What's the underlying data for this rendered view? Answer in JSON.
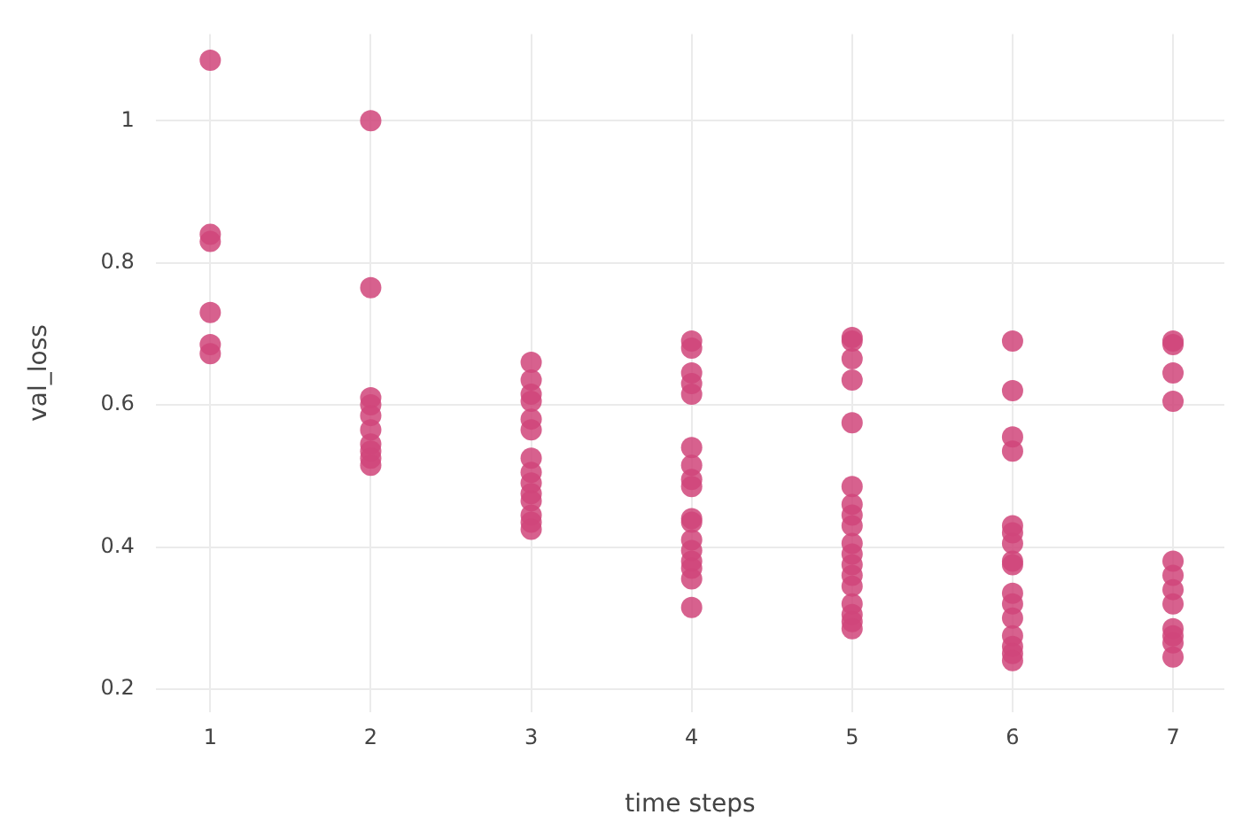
{
  "chart_data": {
    "type": "scatter",
    "xlabel": "time steps",
    "ylabel": "val_loss",
    "xlim": [
      0.66,
      7.32
    ],
    "xticks": [
      1,
      2,
      3,
      4,
      5,
      6,
      7
    ],
    "ylim": [
      0.168,
      1.122
    ],
    "yticks": [
      0.2,
      0.4,
      0.6,
      0.8,
      1
    ],
    "grid": true,
    "marker": "circle",
    "series": [
      {
        "color": "#d0457a",
        "x": [
          1,
          1,
          1,
          1,
          1,
          1,
          2,
          2,
          2,
          2,
          2,
          2,
          2,
          2,
          2,
          2,
          3,
          3,
          3,
          3,
          3,
          3,
          3,
          3,
          3,
          3,
          3,
          3,
          3,
          3,
          4,
          4,
          4,
          4,
          4,
          4,
          4,
          4,
          4,
          4,
          4,
          4,
          4,
          4,
          4,
          4,
          4,
          5,
          5,
          5,
          5,
          5,
          5,
          5,
          5,
          5,
          5,
          5,
          5,
          5,
          5,
          5,
          5,
          5,
          5,
          6,
          6,
          6,
          6,
          6,
          6,
          6,
          6,
          6,
          6,
          6,
          6,
          6,
          6,
          6,
          6,
          7,
          7,
          7,
          7,
          7,
          7,
          7,
          7,
          7,
          7,
          7,
          7
        ],
        "values": [
          1.085,
          0.84,
          0.83,
          0.73,
          0.685,
          0.672,
          1.0,
          0.765,
          0.61,
          0.6,
          0.585,
          0.565,
          0.545,
          0.535,
          0.525,
          0.515,
          0.66,
          0.635,
          0.615,
          0.605,
          0.58,
          0.565,
          0.525,
          0.505,
          0.49,
          0.475,
          0.465,
          0.445,
          0.435,
          0.425,
          0.69,
          0.68,
          0.645,
          0.63,
          0.615,
          0.54,
          0.515,
          0.495,
          0.485,
          0.44,
          0.435,
          0.41,
          0.395,
          0.38,
          0.37,
          0.355,
          0.315,
          0.695,
          0.69,
          0.665,
          0.635,
          0.575,
          0.485,
          0.46,
          0.445,
          0.43,
          0.405,
          0.39,
          0.375,
          0.36,
          0.345,
          0.32,
          0.305,
          0.295,
          0.285,
          0.69,
          0.62,
          0.555,
          0.535,
          0.43,
          0.42,
          0.405,
          0.38,
          0.375,
          0.335,
          0.32,
          0.3,
          0.275,
          0.26,
          0.25,
          0.24,
          0.69,
          0.685,
          0.645,
          0.605,
          0.38,
          0.36,
          0.34,
          0.32,
          0.285,
          0.275,
          0.265,
          0.245
        ]
      }
    ]
  }
}
